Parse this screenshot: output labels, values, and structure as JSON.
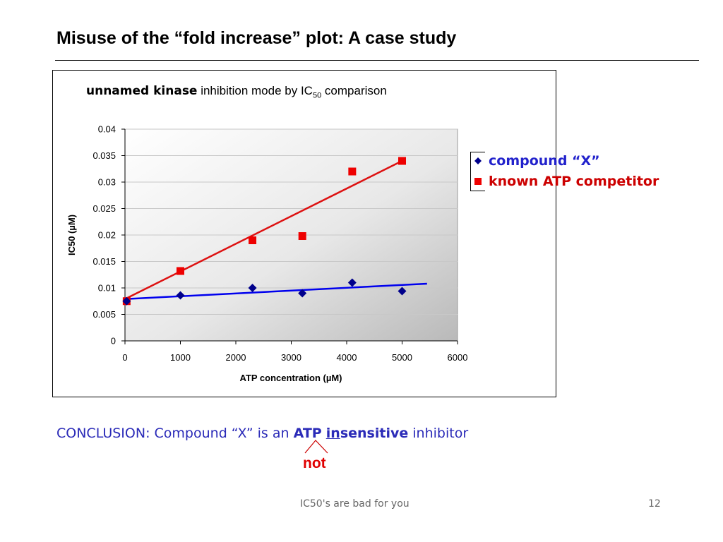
{
  "slide": {
    "title": "Misuse of the “fold increase” plot: A case study",
    "footer": "IC50's are bad for you",
    "page_number": "12"
  },
  "chart_title": {
    "kinase": "unnamed kinase",
    "text": " inhibition mode by IC",
    "subscript": "50",
    "text_end": " comparison"
  },
  "legend": {
    "compound_x": "compound “X”",
    "atp_competitor": "known ATP competitor"
  },
  "conclusion": {
    "prefix": "CONCLUSION: Compound “X” is an ",
    "atp": "ATP",
    "in": "in",
    "sensitive": "sensitive",
    "suffix": " inhibitor",
    "insert_word": "not"
  },
  "colors": {
    "compound_x": "#00008b",
    "compound_x_trend": "#0000ee",
    "atp_competitor": "#ee0000",
    "atp_competitor_trend": "#dd1111",
    "conclusion_text": "#2b2bb8",
    "insert_word": "#e00000"
  },
  "chart_data": {
    "type": "scatter",
    "xlabel": "ATP concentration (µM)",
    "ylabel": "IC50 (µM)",
    "xlim": [
      0,
      6000
    ],
    "ylim": [
      0,
      0.04
    ],
    "x_ticks": [
      "0",
      "1000",
      "2000",
      "3000",
      "4000",
      "5000",
      "6000"
    ],
    "y_ticks": [
      "0",
      "0.005",
      "0.01",
      "0.015",
      "0.02",
      "0.025",
      "0.03",
      "0.035",
      "0.04"
    ],
    "grid": "horizontal",
    "background": "gradient gray",
    "legend_position": "right",
    "series": [
      {
        "name": "compound “X”",
        "marker": "diamond",
        "points": [
          [
            30,
            0.0075
          ],
          [
            1000,
            0.0086
          ],
          [
            2300,
            0.01
          ],
          [
            3200,
            0.009
          ],
          [
            4100,
            0.011
          ],
          [
            5000,
            0.0094
          ]
        ],
        "trendline": [
          [
            0,
            0.0079
          ],
          [
            5450,
            0.0108
          ]
        ]
      },
      {
        "name": "known ATP competitor",
        "marker": "square",
        "points": [
          [
            30,
            0.0075
          ],
          [
            1000,
            0.0132
          ],
          [
            2300,
            0.019
          ],
          [
            3200,
            0.0198
          ],
          [
            4100,
            0.032
          ],
          [
            5000,
            0.034
          ]
        ],
        "trendline": [
          [
            0,
            0.0079
          ],
          [
            5000,
            0.034
          ]
        ]
      }
    ]
  }
}
